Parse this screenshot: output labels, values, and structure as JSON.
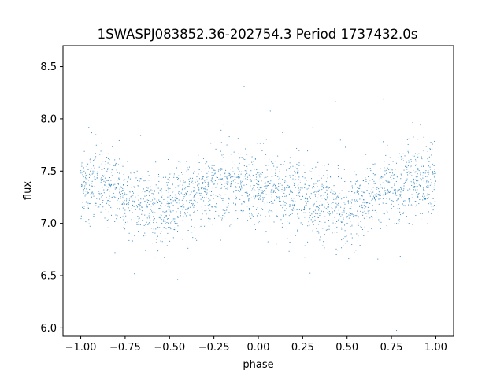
{
  "chart_data": {
    "type": "scatter",
    "title": "1SWASPJ083852.36-202754.3 Period 1737432.0s",
    "xlabel": "phase",
    "ylabel": "flux",
    "xlim": [
      -1.1,
      1.1
    ],
    "ylim": [
      5.92,
      8.7
    ],
    "xticks": [
      -1.0,
      -0.75,
      -0.5,
      -0.25,
      0.0,
      0.25,
      0.5,
      0.75,
      1.0
    ],
    "xtick_labels": [
      "−1.00",
      "−0.75",
      "−0.50",
      "−0.25",
      "0.00",
      "0.25",
      "0.50",
      "0.75",
      "1.00"
    ],
    "yticks": [
      6.0,
      6.5,
      7.0,
      7.5,
      8.0,
      8.5
    ],
    "ytick_labels": [
      "6.0",
      "6.5",
      "7.0",
      "7.5",
      "8.0",
      "8.5"
    ],
    "grid": false,
    "marker_color": "#1f77b4",
    "series": [
      {
        "x_range": [
          -1.0,
          1.0
        ],
        "trend": [
          [
            -1.0,
            7.38
          ],
          [
            -0.9,
            7.35
          ],
          [
            -0.8,
            7.3
          ],
          [
            -0.7,
            7.2
          ],
          [
            -0.6,
            7.15
          ],
          [
            -0.5,
            7.15
          ],
          [
            -0.4,
            7.22
          ],
          [
            -0.3,
            7.32
          ],
          [
            -0.2,
            7.38
          ],
          [
            -0.1,
            7.38
          ],
          [
            0.0,
            7.35
          ],
          [
            0.1,
            7.32
          ],
          [
            0.2,
            7.3
          ],
          [
            0.3,
            7.2
          ],
          [
            0.4,
            7.15
          ],
          [
            0.5,
            7.15
          ],
          [
            0.6,
            7.22
          ],
          [
            0.7,
            7.32
          ],
          [
            0.8,
            7.38
          ],
          [
            0.9,
            7.38
          ],
          [
            1.0,
            7.38
          ]
        ]
      }
    ]
  }
}
